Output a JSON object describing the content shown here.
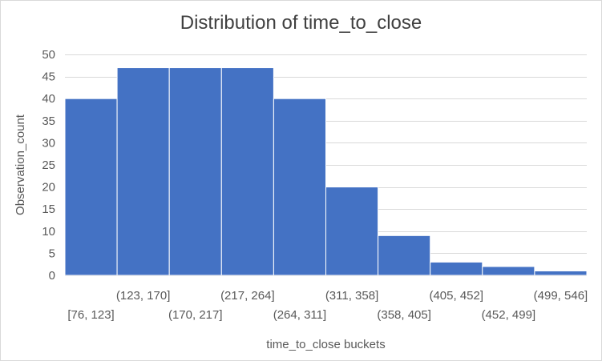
{
  "chart_data": {
    "type": "bar",
    "title": "Distribution of time_to_close",
    "xlabel": "time_to_close buckets",
    "ylabel": "Observation_count",
    "categories": [
      "[76, 123]",
      "(123, 170]",
      "(170, 217]",
      "(217, 264]",
      "(264, 311]",
      "(311, 358]",
      "(358, 405]",
      "(405, 452]",
      "(452, 499]",
      "(499, 546]"
    ],
    "values": [
      40,
      47,
      47,
      47,
      40,
      20,
      9,
      3,
      2,
      1
    ],
    "ylim": [
      0,
      50
    ],
    "yticks": [
      0,
      5,
      10,
      15,
      20,
      25,
      30,
      35,
      40,
      45,
      50
    ],
    "grid": true,
    "legend": "none",
    "colors": {
      "bar": "#4472c4",
      "grid": "#d9d9d9",
      "text": "#595959",
      "title": "#404040"
    }
  }
}
